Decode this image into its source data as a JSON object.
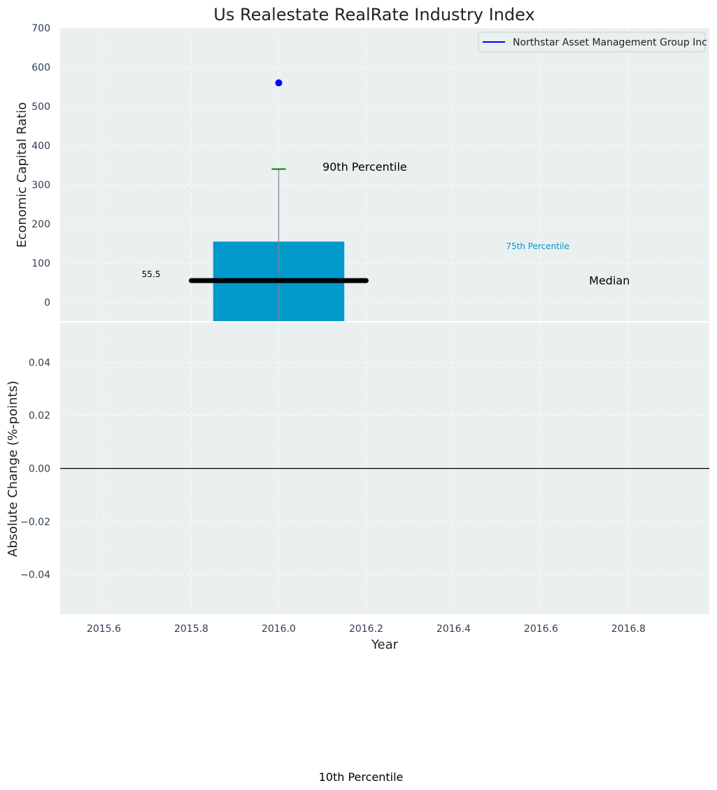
{
  "chart_data": {
    "type": "boxplot",
    "title": "Us Realestate RealRate Industry Index",
    "xlabel": "Year",
    "xlim": [
      2015.5,
      2016.985
    ],
    "x_ticks": [
      "2015.6",
      "2015.8",
      "2016.0",
      "2016.2",
      "2016.4",
      "2016.6",
      "2016.8"
    ],
    "x_tick_values": [
      2015.6,
      2015.8,
      2016.0,
      2016.2,
      2016.4,
      2016.6,
      2016.8
    ],
    "legend": {
      "position": "top-right",
      "entries": [
        {
          "label": "Northstar Asset Management Group Inc",
          "color": "#0000ff"
        }
      ]
    },
    "top_panel": {
      "ylabel": "Economic Capital Ratio",
      "ylim": [
        -48,
        700
      ],
      "y_ticks": [
        "700",
        "600",
        "500",
        "400",
        "300",
        "200",
        "100",
        "0"
      ],
      "y_tick_values": [
        700,
        600,
        500,
        400,
        300,
        200,
        100,
        0
      ],
      "box": {
        "x": 2016.0,
        "half_width": 0.15,
        "bottom": -48,
        "top": 155,
        "color": "#0099cc"
      },
      "median": {
        "value": 55.5,
        "x_from": 2015.8,
        "x_to": 2016.2,
        "label": "55.5"
      },
      "whisker_top": 340,
      "whisker_bottom": -48,
      "whisker_cap_color": "#008000",
      "point": {
        "x": 2016.0,
        "y": 560,
        "color": "#0000ff"
      },
      "annotations": [
        {
          "text": "90th Percentile",
          "x": 2016.1,
          "y": 345,
          "color": "#000000"
        },
        {
          "text": "75th Percentile",
          "x": 2016.52,
          "y": 145,
          "color": "#0099cc"
        },
        {
          "text": "Median",
          "x": 2016.71,
          "y": 55,
          "color": "#000000"
        }
      ]
    },
    "bottom_panel": {
      "ylabel": "Absolute Change (%-points)",
      "ylim": [
        -0.055,
        0.055
      ],
      "y_ticks": [
        "0.04",
        "0.02",
        "0.00",
        "−0.02",
        "−0.04"
      ],
      "y_tick_values": [
        0.04,
        0.02,
        0.0,
        -0.02,
        -0.04
      ],
      "zero_line": 0.0
    },
    "footer_annotation": "10th Percentile"
  }
}
